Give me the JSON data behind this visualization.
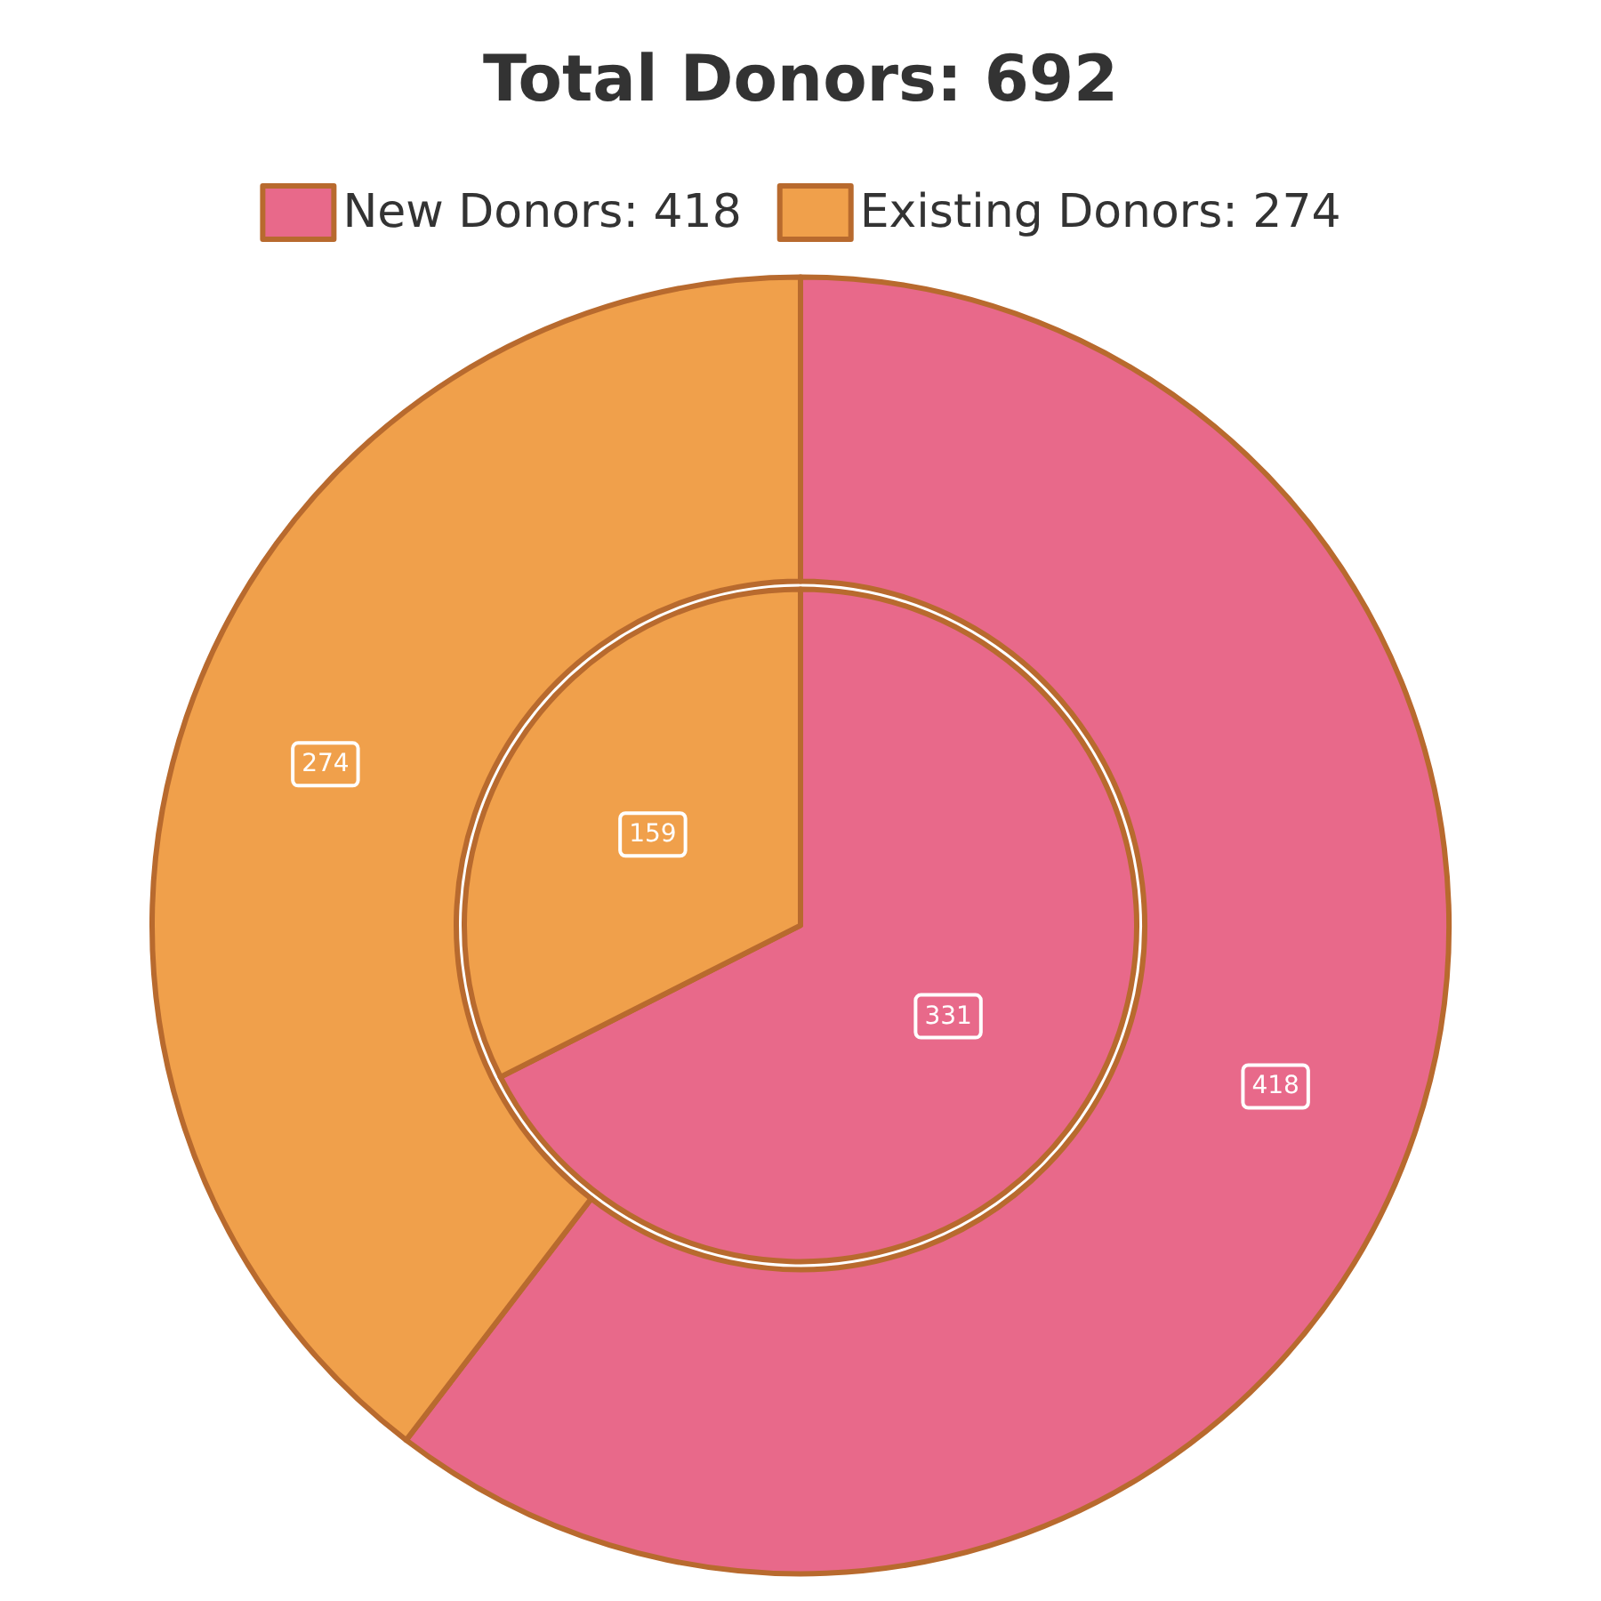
{
  "chart_data": {
    "type": "donut",
    "title": "Total Donors: 692",
    "categories": [
      "New Donors: 418",
      "Existing Donors: 274"
    ],
    "colors": [
      "#e8698a",
      "#f0a04b"
    ],
    "series": [
      {
        "type": "pie",
        "values": [
          331,
          159
        ]
      },
      {
        "type": "donut",
        "values": [
          418,
          274
        ]
      }
    ],
    "data_labels": true,
    "legend": "top"
  }
}
